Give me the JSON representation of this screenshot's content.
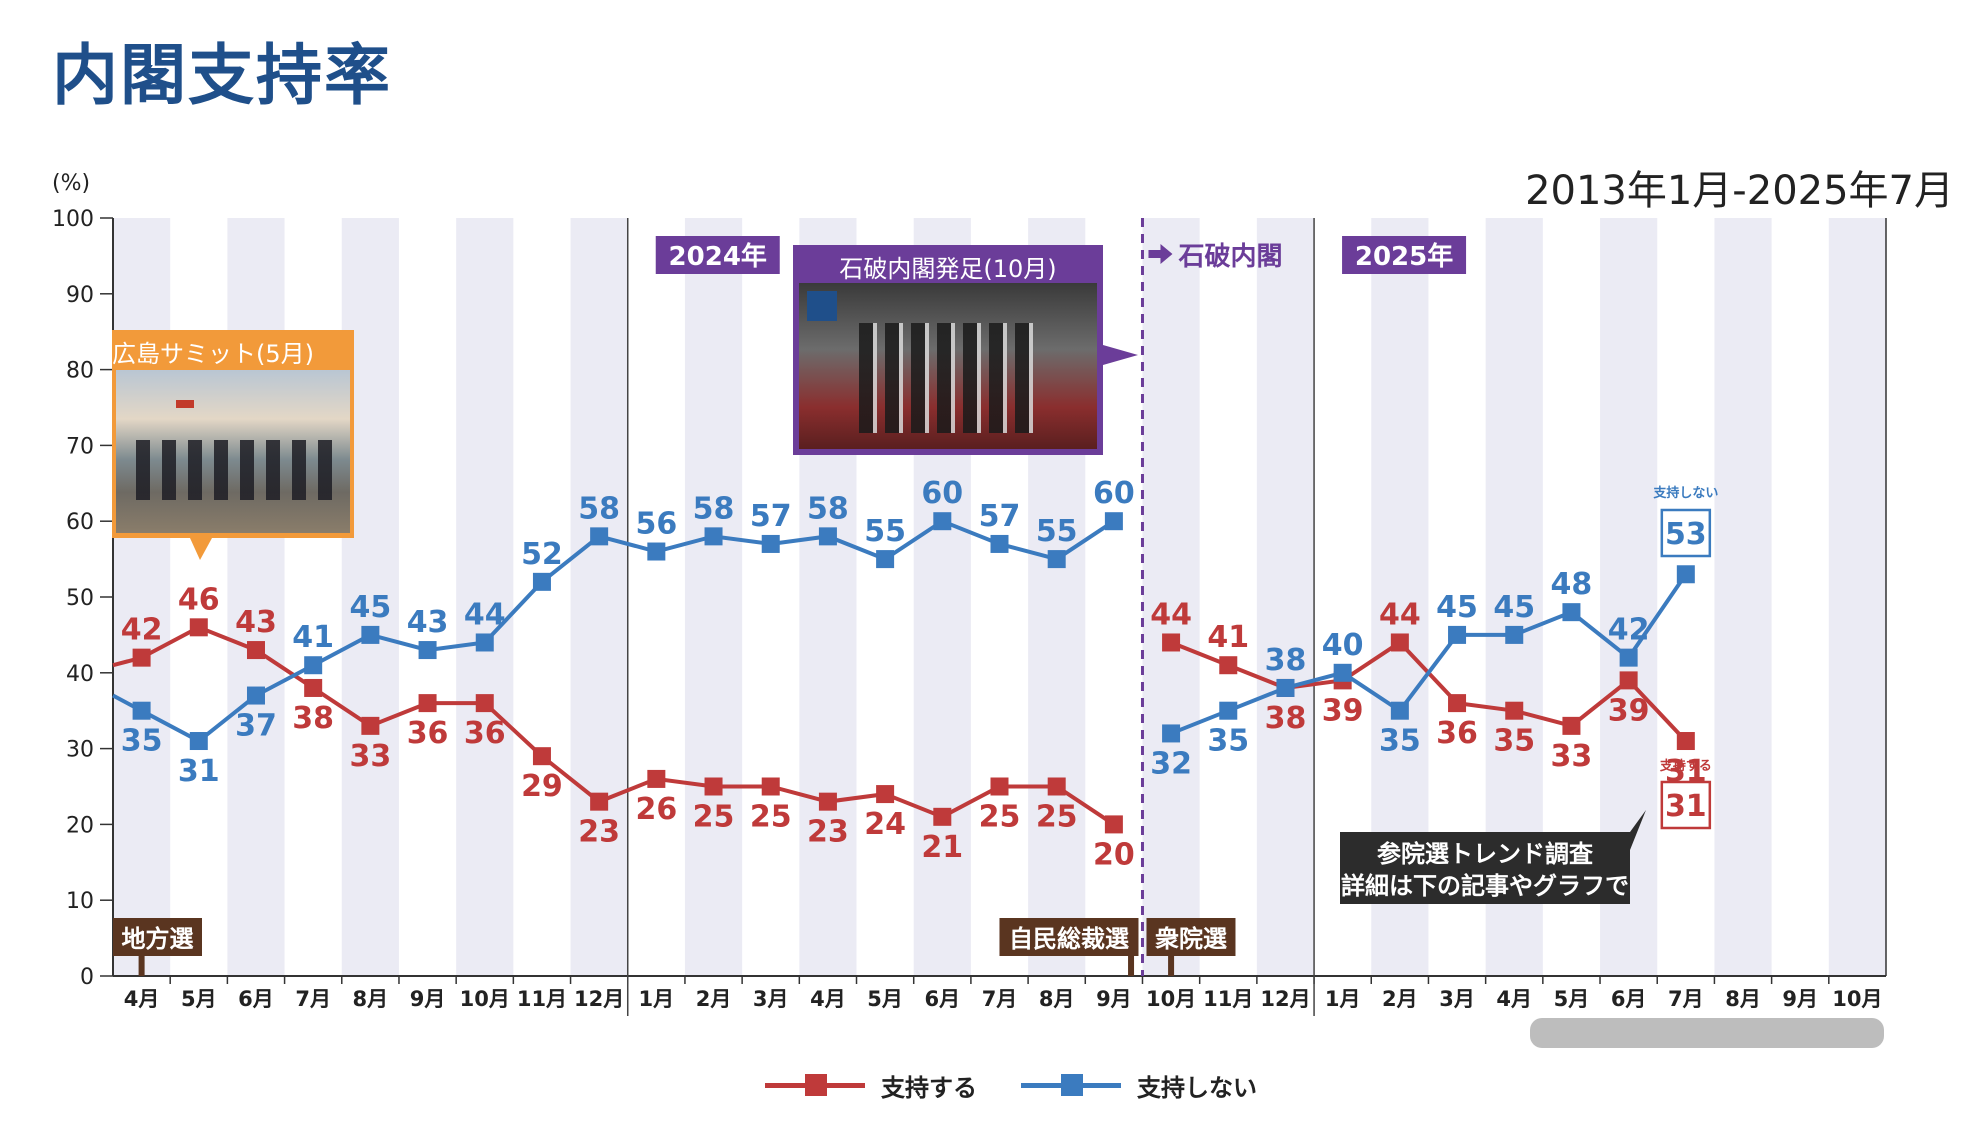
{
  "page": {
    "title": "内閣支持率",
    "date_range": "2013年1月-2025年7月",
    "y_unit": "(%)"
  },
  "colors": {
    "support": "#bf3a3a",
    "nonsupport": "#3b7bbf",
    "purple": "#6b3d99",
    "orange": "#f29a3a",
    "brown": "#5a3520",
    "stripe": "#ebebf4"
  },
  "chart_data": {
    "type": "line",
    "ylim": [
      0,
      100
    ],
    "yticks": [
      0,
      10,
      20,
      30,
      40,
      50,
      60,
      70,
      80,
      90,
      100
    ],
    "categories": [
      "4月",
      "5月",
      "6月",
      "7月",
      "8月",
      "9月",
      "10月",
      "11月",
      "12月",
      "1月",
      "2月",
      "3月",
      "4月",
      "5月",
      "6月",
      "7月",
      "8月",
      "9月",
      "10月",
      "11月",
      "12月",
      "1月",
      "2月",
      "3月",
      "4月",
      "5月",
      "6月",
      "7月",
      "8月",
      "9月",
      "10月"
    ],
    "series": [
      {
        "name": "支持する",
        "values": [
          42,
          46,
          43,
          38,
          33,
          36,
          36,
          29,
          23,
          26,
          25,
          25,
          23,
          24,
          21,
          25,
          25,
          20,
          44,
          41,
          38,
          39,
          44,
          36,
          35,
          33,
          39,
          31,
          null,
          null,
          null
        ]
      },
      {
        "name": "支持しない",
        "values": [
          35,
          31,
          37,
          41,
          45,
          43,
          44,
          52,
          58,
          56,
          58,
          57,
          58,
          55,
          60,
          57,
          55,
          60,
          32,
          35,
          38,
          40,
          35,
          45,
          45,
          48,
          42,
          53,
          null,
          null,
          null
        ]
      }
    ],
    "year_labels": [
      "2024年",
      "2025年"
    ],
    "event_labels": [
      "地方選",
      "自民総裁選",
      "衆院選"
    ],
    "cabinet_change_label": "石破内閣",
    "callouts": {
      "hiroshima": "広島サミット(5月)",
      "ishiba": "石破内閣発足(10月)",
      "trend": [
        "参院選トレンド調査",
        "詳細は下の記事やグラフで"
      ]
    },
    "latest": {
      "support_label": "支持する",
      "support_value": 31,
      "nonsupport_label": "支持しない",
      "nonsupport_value": 53
    },
    "legend": {
      "position": "bottom"
    }
  }
}
